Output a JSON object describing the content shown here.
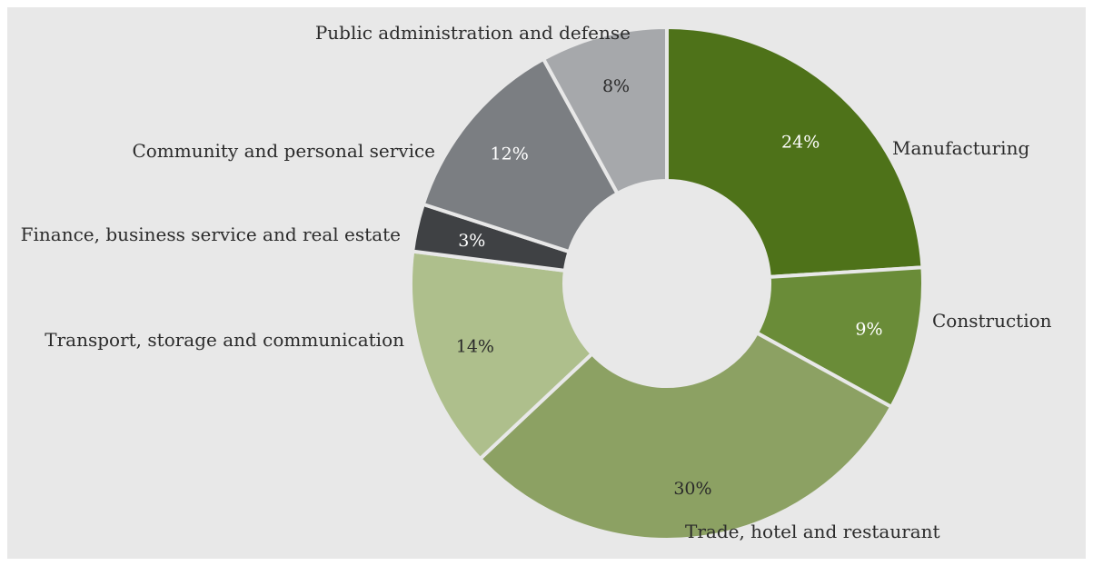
{
  "chart_data": {
    "type": "pie",
    "variant": "donut",
    "legend": "none",
    "segments": [
      {
        "label": "Manufacturing",
        "value": 24,
        "value_label": "24%",
        "color": "#4e7219",
        "text_color": "#ffffff"
      },
      {
        "label": "Construction",
        "value": 9,
        "value_label": "9%",
        "color": "#6a8c38",
        "text_color": "#ffffff"
      },
      {
        "label": "Trade, hotel and restaurant",
        "value": 30,
        "value_label": "30%",
        "color": "#8ca163",
        "text_color": "#2a2a2a"
      },
      {
        "label": "Transport, storage and communication",
        "value": 14,
        "value_label": "14%",
        "color": "#aebf8c",
        "text_color": "#2a2a2a"
      },
      {
        "label": "Finance, business service and real estate",
        "value": 3,
        "value_label": "3%",
        "color": "#3f4144",
        "text_color": "#ffffff"
      },
      {
        "label": "Community and personal service",
        "value": 12,
        "value_label": "12%",
        "color": "#7b7e82",
        "text_color": "#ffffff"
      },
      {
        "label": "Public administration and defense",
        "value": 8,
        "value_label": "8%",
        "color": "#a6a8ab",
        "text_color": "#2a2a2a"
      }
    ]
  }
}
